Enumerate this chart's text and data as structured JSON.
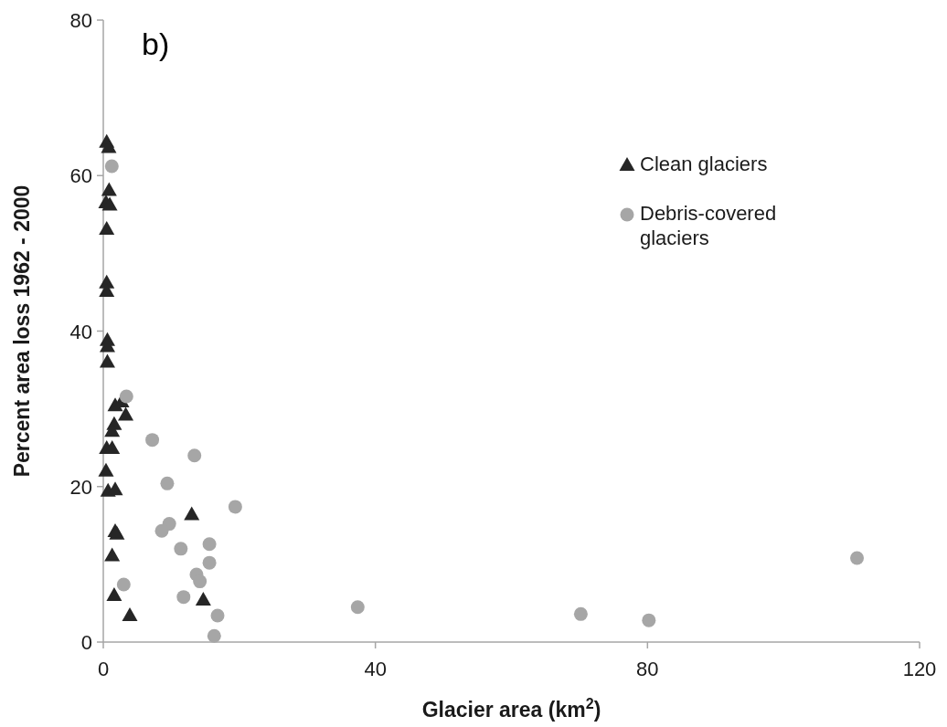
{
  "chart_data": {
    "type": "scatter",
    "title": "b)",
    "xlabel": "Glacier area (km$^{2}$)",
    "ylabel": "Percent area loss 1962 - 2000",
    "xlim": [
      0,
      120
    ],
    "xticks": [
      0,
      40,
      80,
      120
    ],
    "ylim": [
      0,
      80
    ],
    "yticks": [
      0,
      20,
      40,
      60,
      80
    ],
    "grid": false,
    "legend": "right",
    "series": [
      {
        "name": "Clean glaciers",
        "color": "#262626",
        "marker": "triangle",
        "x": [
          0.5,
          0.8,
          0.85,
          0.4,
          0.95,
          0.5,
          0.5,
          0.5,
          0.6,
          0.6,
          0.6,
          1.75,
          2.7,
          3.3,
          1.6,
          1.3,
          0.5,
          1.3,
          0.4,
          0.7,
          1.75,
          1.75,
          2.0,
          1.3,
          1.6,
          3.9,
          13.0,
          14.7
        ],
        "values": [
          64.3,
          63.6,
          58.1,
          56.5,
          56.2,
          53.1,
          46.2,
          45.1,
          38.8,
          38.0,
          36.0,
          30.4,
          30.9,
          29.2,
          28.0,
          27.1,
          24.9,
          24.9,
          22.0,
          19.4,
          19.6,
          14.2,
          13.9,
          11.1,
          6.0,
          3.4,
          16.4,
          5.4
        ]
      },
      {
        "name": "Debris-covered glaciers",
        "color": "#a6a6a6",
        "marker": "circle",
        "x": [
          1.25,
          3.4,
          7.2,
          13.4,
          9.4,
          19.4,
          9.7,
          8.6,
          11.4,
          15.6,
          15.6,
          13.7,
          14.2,
          3.0,
          11.8,
          16.8,
          16.3,
          37.4,
          70.2,
          80.2,
          110.8
        ],
        "values": [
          61.2,
          31.6,
          26.0,
          24.0,
          20.4,
          17.4,
          15.2,
          14.3,
          12.0,
          12.6,
          10.2,
          8.7,
          7.8,
          7.4,
          5.8,
          3.4,
          0.8,
          4.5,
          3.6,
          2.8,
          10.8
        ]
      }
    ]
  }
}
